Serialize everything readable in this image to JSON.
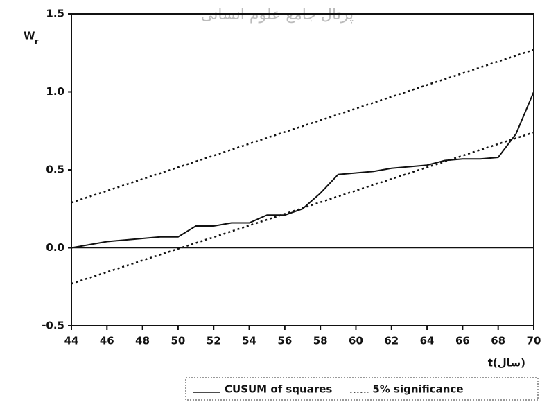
{
  "watermark": "پرتال جامع علوم انسانی",
  "chart_data": {
    "type": "line",
    "y_label": "W",
    "y_label_subscript": "r",
    "x_label": "t(سال)",
    "xlim": [
      44,
      70
    ],
    "xticks": [
      44,
      46,
      48,
      50,
      52,
      54,
      56,
      58,
      60,
      62,
      64,
      66,
      68,
      70
    ],
    "ylim": [
      -0.5,
      1.5
    ],
    "yticks": [
      -0.5,
      {
        "value": 0,
        "label": "0.0"
      },
      0.5,
      {
        "value": 1,
        "label": "1.0"
      },
      1.5
    ],
    "hline": 0,
    "series": [
      {
        "name": "CUSUM of squares",
        "color": "#111111",
        "dashed": false,
        "x": [
          44,
          45,
          46,
          47,
          48,
          49,
          50,
          51,
          52,
          53,
          54,
          55,
          56,
          57,
          58,
          59,
          60,
          61,
          62,
          63,
          64,
          65,
          66,
          67,
          68,
          69,
          70
        ],
        "values": [
          0.0,
          0.02,
          0.04,
          0.05,
          0.06,
          0.07,
          0.07,
          0.14,
          0.14,
          0.16,
          0.16,
          0.21,
          0.21,
          0.25,
          0.35,
          0.47,
          0.48,
          0.49,
          0.51,
          0.52,
          0.53,
          0.56,
          0.57,
          0.57,
          0.58,
          0.73,
          1.0
        ]
      },
      {
        "name": "5% significance",
        "color": "#111111",
        "dashed": true,
        "x": [
          44,
          70
        ],
        "values": [
          0.29,
          1.27
        ]
      },
      {
        "name": null,
        "color": "#111111",
        "dashed": true,
        "x": [
          44,
          70
        ],
        "values": [
          -0.23,
          0.74
        ]
      }
    ]
  }
}
